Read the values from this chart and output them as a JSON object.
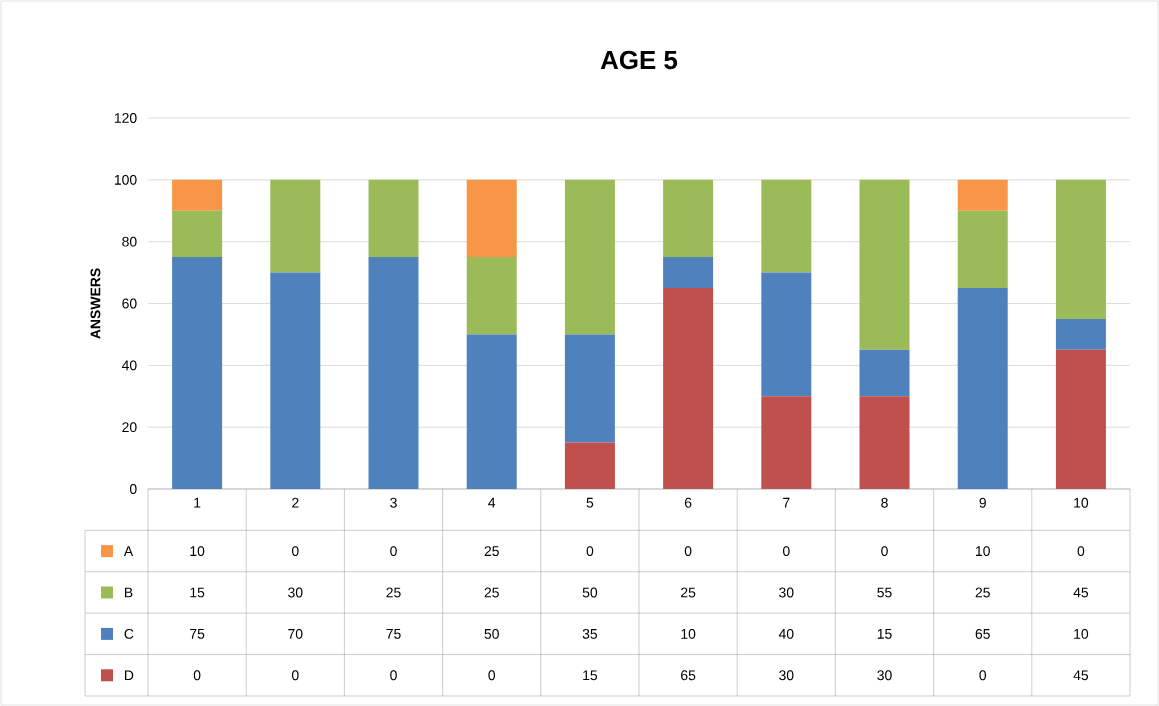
{
  "chart_data": {
    "type": "bar",
    "title": "AGE 5",
    "ylabel": "ANSWERS",
    "stacked": true,
    "categories": [
      "1",
      "2",
      "3",
      "4",
      "5",
      "6",
      "7",
      "8",
      "9",
      "10"
    ],
    "series": [
      {
        "name": "D",
        "color": "#c0504d",
        "values": [
          0,
          0,
          0,
          0,
          15,
          65,
          30,
          30,
          0,
          45
        ]
      },
      {
        "name": "C",
        "color": "#4f81bd",
        "values": [
          75,
          70,
          75,
          50,
          35,
          10,
          40,
          15,
          65,
          10
        ]
      },
      {
        "name": "B",
        "color": "#9bbb59",
        "values": [
          15,
          30,
          25,
          25,
          50,
          25,
          30,
          55,
          25,
          45
        ]
      },
      {
        "name": "A",
        "color": "#f79646",
        "values": [
          10,
          0,
          0,
          25,
          0,
          0,
          0,
          0,
          10,
          0
        ]
      }
    ],
    "ylim": [
      0,
      120
    ],
    "yticks": [
      0,
      20,
      40,
      60,
      80,
      100,
      120
    ],
    "grid": "y",
    "legend": "bottom",
    "data_labels": true
  }
}
